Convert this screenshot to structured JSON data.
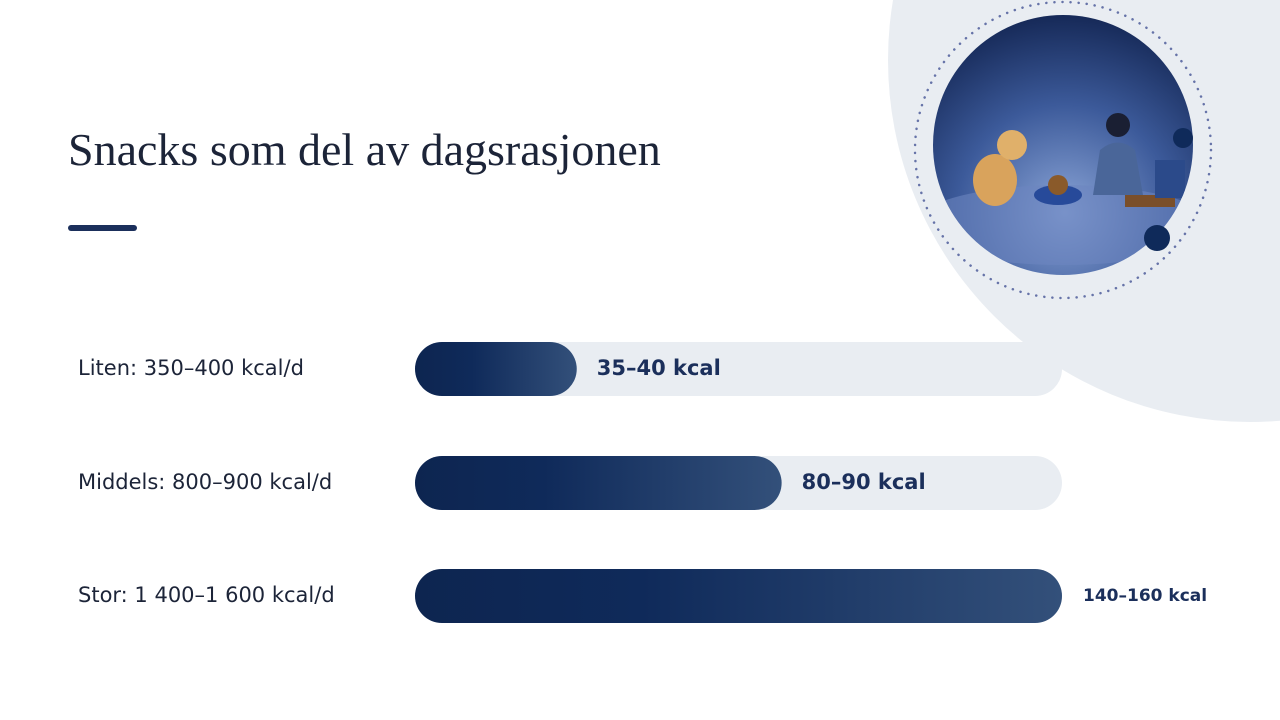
{
  "chart_data": {
    "type": "bar",
    "orientation": "horizontal",
    "title": "Snacks som del av dagsrasjonen",
    "categories": [
      "Liten: 350–400 kcal/d",
      "Middels: 800–900 kcal/d",
      "Stor: 1 400–1 600 kcal/d"
    ],
    "values": [
      37.5,
      85,
      150
    ],
    "value_labels": [
      "35–40 kcal",
      "80–90 kcal",
      "140–160 kcal"
    ],
    "xlim": [
      0,
      150
    ],
    "color": "#0f2a5a"
  }
}
